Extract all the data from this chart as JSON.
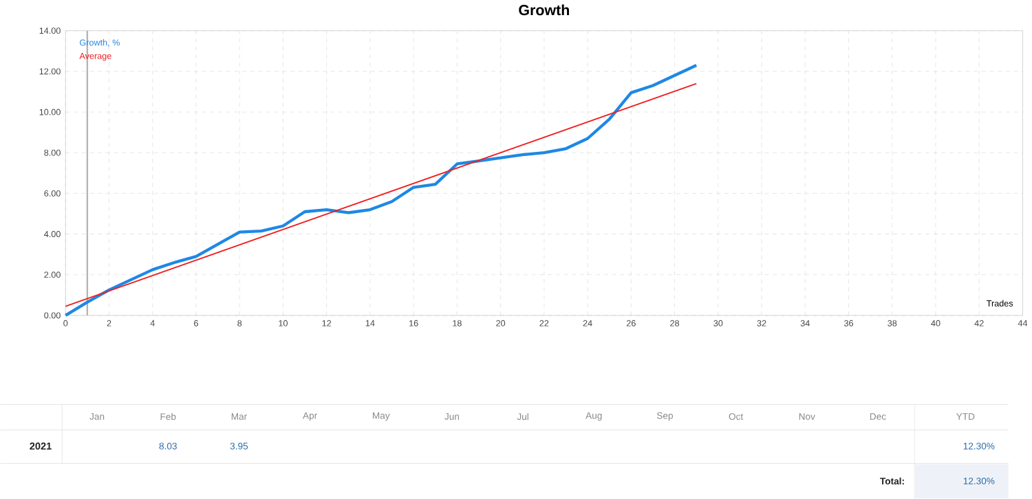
{
  "chart_data": {
    "type": "line",
    "title": "Growth",
    "xlabel": "Trades",
    "x": [
      0,
      1,
      2,
      3,
      4,
      5,
      6,
      7,
      8,
      9,
      10,
      11,
      12,
      13,
      14,
      15,
      16,
      17,
      18,
      19,
      20,
      21,
      22,
      23,
      24,
      25,
      26,
      27,
      28,
      29
    ],
    "series": [
      {
        "name": "Growth, %",
        "color": "#1e88e5",
        "values": [
          0,
          0.65,
          1.25,
          1.75,
          2.25,
          2.6,
          2.9,
          3.5,
          4.1,
          4.15,
          4.4,
          5.1,
          5.2,
          5.05,
          5.2,
          5.6,
          6.3,
          6.45,
          7.45,
          7.6,
          7.75,
          7.9,
          8.0,
          8.2,
          8.7,
          9.65,
          10.95,
          11.3,
          11.8,
          12.3
        ]
      },
      {
        "name": "Average",
        "color": "#f01e1e",
        "x": [
          0,
          29
        ],
        "values": [
          0.45,
          11.4
        ]
      }
    ],
    "xlim": [
      0,
      44
    ],
    "xticks": [
      0,
      2,
      4,
      6,
      8,
      10,
      12,
      14,
      16,
      18,
      20,
      22,
      24,
      26,
      28,
      30,
      32,
      34,
      36,
      38,
      40,
      42,
      44
    ],
    "ylim": [
      0,
      14
    ],
    "yticks": [
      {
        "value": 0,
        "label": "0.00"
      },
      {
        "value": 2,
        "label": "2.00"
      },
      {
        "value": 4,
        "label": "4.00"
      },
      {
        "value": 6,
        "label": "6.00"
      },
      {
        "value": 8,
        "label": "8.00"
      },
      {
        "value": 10,
        "label": "10.00"
      },
      {
        "value": 12,
        "label": "12.00"
      },
      {
        "value": 14,
        "label": "14.00"
      }
    ],
    "ref_lines": [
      {
        "axis": "x",
        "value": 1,
        "color": "#b4b4b4"
      }
    ],
    "grid": true,
    "legend": "top left",
    "line_style": "solid",
    "marker": "none",
    "annotations": [
      "Jan",
      "Feb",
      "Mar",
      "Apr",
      "May",
      "Jun",
      "Jul",
      "Aug",
      "Sep",
      "Oct",
      "Nov",
      "Dec",
      "YTD",
      "2021",
      "8.03",
      "3.95",
      "12.30%",
      "Total:",
      "12.30%"
    ]
  }
}
